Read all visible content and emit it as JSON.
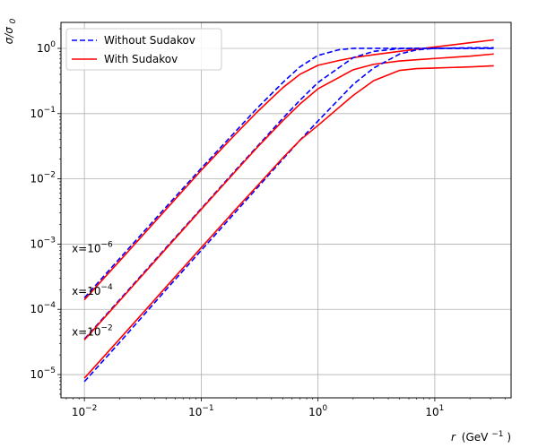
{
  "chart_data": {
    "type": "line",
    "title": "",
    "xlabel": {
      "var": "r",
      "unit_base": "(GeV",
      "unit_exp": "−1",
      "unit_close": ")"
    },
    "ylabel": {
      "base": "σ/σ",
      "sub": "0"
    },
    "xscale": "log",
    "yscale": "log",
    "xlim": [
      0.0063,
      45
    ],
    "ylim": [
      4.4e-06,
      2.5
    ],
    "grid": true,
    "legend_position": "top-left",
    "x_ticks": [
      {
        "value": 0.01,
        "base": "10",
        "exp": "−2"
      },
      {
        "value": 0.1,
        "base": "10",
        "exp": "−1"
      },
      {
        "value": 1,
        "base": "10",
        "exp": "0"
      },
      {
        "value": 10,
        "base": "10",
        "exp": "1"
      }
    ],
    "y_ticks": [
      {
        "value": 1e-05,
        "base": "10",
        "exp": "−5"
      },
      {
        "value": 0.0001,
        "base": "10",
        "exp": "−4"
      },
      {
        "value": 0.001,
        "base": "10",
        "exp": "−3"
      },
      {
        "value": 0.01,
        "base": "10",
        "exp": "−2"
      },
      {
        "value": 0.1,
        "base": "10",
        "exp": "−1"
      },
      {
        "value": 1,
        "base": "10",
        "exp": "0"
      }
    ],
    "legend": [
      {
        "label": "Without Sudakov",
        "color": "#0000ff",
        "style": "dashed"
      },
      {
        "label": "With Sudakov",
        "color": "#ff0000",
        "style": "solid"
      }
    ],
    "annotations": [
      {
        "base": "x=10",
        "exp": "−6",
        "x": 0.0078,
        "y": 0.00085
      },
      {
        "base": "x=10",
        "exp": "−4",
        "x": 0.0078,
        "y": 0.00019
      },
      {
        "base": "x=10",
        "exp": "−2",
        "x": 0.0078,
        "y": 4.5e-05
      }
    ],
    "series": [
      {
        "legend_index": 0,
        "color": "#0000ff",
        "style": "dashed",
        "x": [
          0.01,
          0.02,
          0.05,
          0.1,
          0.2,
          0.3,
          0.5,
          0.7,
          1,
          1.5,
          2,
          3,
          5,
          10,
          20,
          32
        ],
        "y": [
          0.00015,
          0.0006,
          0.0037,
          0.0145,
          0.055,
          0.12,
          0.3,
          0.52,
          0.78,
          0.95,
          1.0,
          1.0,
          1.0,
          1.0,
          1.0,
          1.0
        ]
      },
      {
        "legend_index": 1,
        "color": "#ff0000",
        "style": "solid",
        "x": [
          0.01,
          0.02,
          0.05,
          0.1,
          0.2,
          0.3,
          0.5,
          0.7,
          1,
          1.5,
          2,
          3,
          5,
          10,
          20,
          32
        ],
        "y": [
          0.00014,
          0.00055,
          0.0034,
          0.0135,
          0.05,
          0.105,
          0.25,
          0.4,
          0.55,
          0.65,
          0.72,
          0.8,
          0.9,
          1.05,
          1.22,
          1.35
        ]
      },
      {
        "legend_index": 0,
        "color": "#0000ff",
        "style": "dashed",
        "x": [
          0.01,
          0.02,
          0.05,
          0.1,
          0.2,
          0.3,
          0.5,
          0.7,
          1,
          2,
          3,
          5,
          7,
          10,
          20,
          32
        ],
        "y": [
          3.5e-05,
          0.00014,
          0.00088,
          0.0035,
          0.014,
          0.031,
          0.085,
          0.16,
          0.3,
          0.72,
          0.9,
          0.99,
          1.0,
          1.0,
          1.0,
          1.0
        ]
      },
      {
        "legend_index": 1,
        "color": "#ff0000",
        "style": "solid",
        "x": [
          0.01,
          0.02,
          0.05,
          0.1,
          0.2,
          0.3,
          0.5,
          0.7,
          1,
          2,
          3,
          5,
          7,
          10,
          20,
          32
        ],
        "y": [
          3.4e-05,
          0.000135,
          0.00085,
          0.0034,
          0.0135,
          0.03,
          0.078,
          0.14,
          0.24,
          0.47,
          0.57,
          0.64,
          0.67,
          0.7,
          0.76,
          0.82
        ]
      },
      {
        "legend_index": 0,
        "color": "#0000ff",
        "style": "dashed",
        "x": [
          0.01,
          0.02,
          0.05,
          0.1,
          0.2,
          0.3,
          0.5,
          0.7,
          1,
          2,
          3,
          5,
          7,
          10,
          20,
          32
        ],
        "y": [
          7.8e-06,
          3.1e-05,
          0.0002,
          0.0008,
          0.0032,
          0.0072,
          0.02,
          0.039,
          0.077,
          0.28,
          0.5,
          0.82,
          0.95,
          1.0,
          1.02,
          1.02
        ]
      },
      {
        "legend_index": 1,
        "color": "#ff0000",
        "style": "solid",
        "x": [
          0.01,
          0.02,
          0.05,
          0.1,
          0.2,
          0.3,
          0.5,
          0.7,
          1,
          2,
          3,
          5,
          7,
          10,
          20,
          32
        ],
        "y": [
          8.8e-06,
          3.5e-05,
          0.00022,
          0.00088,
          0.0035,
          0.0077,
          0.021,
          0.039,
          0.066,
          0.19,
          0.32,
          0.46,
          0.49,
          0.5,
          0.52,
          0.54
        ]
      }
    ]
  }
}
